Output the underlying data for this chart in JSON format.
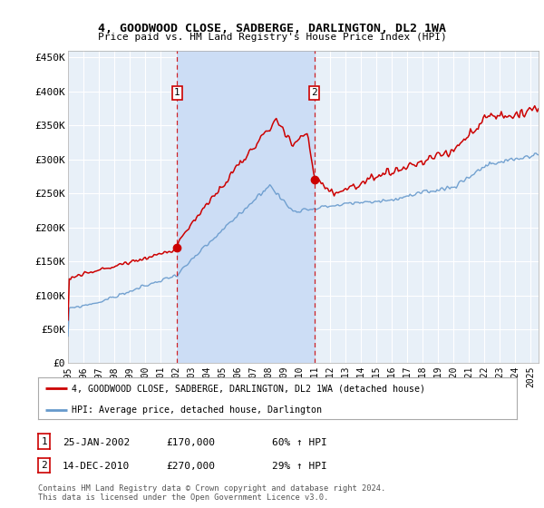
{
  "title": "4, GOODWOOD CLOSE, SADBERGE, DARLINGTON, DL2 1WA",
  "subtitle": "Price paid vs. HM Land Registry's House Price Index (HPI)",
  "ylabel_ticks": [
    "£0",
    "£50K",
    "£100K",
    "£150K",
    "£200K",
    "£250K",
    "£300K",
    "£350K",
    "£400K",
    "£450K"
  ],
  "ylim": [
    0,
    460000
  ],
  "xlim_start": 1995.0,
  "xlim_end": 2025.5,
  "sale1_date": 2002.08,
  "sale1_label": "1",
  "sale1_price": 170000,
  "sale1_pct": "60% ↑ HPI",
  "sale1_datestr": "25-JAN-2002",
  "sale2_date": 2010.96,
  "sale2_label": "2",
  "sale2_price": 270000,
  "sale2_pct": "29% ↑ HPI",
  "sale2_datestr": "14-DEC-2010",
  "hpi_color": "#6699cc",
  "price_color": "#cc0000",
  "shade_color": "#ccddf5",
  "plot_bg": "#e8f0f8",
  "legend_label_red": "4, GOODWOOD CLOSE, SADBERGE, DARLINGTON, DL2 1WA (detached house)",
  "legend_label_blue": "HPI: Average price, detached house, Darlington",
  "footnote": "Contains HM Land Registry data © Crown copyright and database right 2024.\nThis data is licensed under the Open Government Licence v3.0."
}
